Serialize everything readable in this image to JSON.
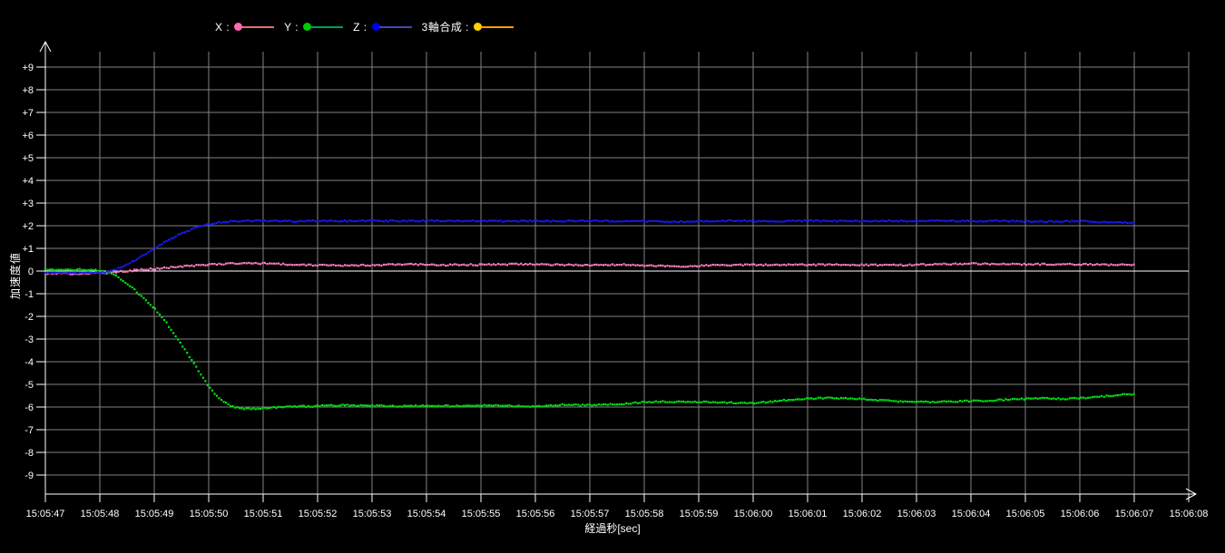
{
  "app": {
    "background": "#000000"
  },
  "legend": {
    "items": [
      {
        "id": "x",
        "label": "X :",
        "dot_color": "#ff69b4",
        "line_color": "#e86e6e"
      },
      {
        "id": "y",
        "label": "Y :",
        "dot_color": "#00cc00",
        "line_color": "#00a050"
      },
      {
        "id": "z",
        "label": "Z :",
        "dot_color": "#0000ee",
        "line_color": "#4646b4"
      },
      {
        "id": "composite",
        "label": "3軸合成 :",
        "dot_color": "#ffd200",
        "line_color": "#ffa000"
      }
    ]
  },
  "chart_data": {
    "type": "scatter",
    "title": "",
    "xlabel": "経過秒[sec]",
    "ylabel": "加速度値",
    "grid": true,
    "legend_position": "top",
    "background_color": "#000000",
    "grid_color": "#828282",
    "axis_color": "#ffffff",
    "zero_line_color": "#ffffff",
    "ylim": [
      -9,
      9
    ],
    "x_start": "15:05:47",
    "x_end": "15:06:08",
    "x_tick_labels": [
      "15:05:47",
      "15:05:48",
      "15:05:49",
      "15:05:50",
      "15:05:51",
      "15:05:52",
      "15:05:53",
      "15:05:54",
      "15:05:55",
      "15:05:56",
      "15:05:57",
      "15:05:58",
      "15:05:59",
      "15:06:00",
      "15:06:01",
      "15:06:02",
      "15:06:03",
      "15:06:04",
      "15:06:05",
      "15:06:06",
      "15:06:07",
      "15:06:08"
    ],
    "y_tick_labels": [
      "+9",
      "+8",
      "+7",
      "+6",
      "+5",
      "+4",
      "+3",
      "+2",
      "+1",
      "0",
      "-1",
      "-2",
      "-3",
      "-4",
      "-5",
      "-6",
      "-7",
      "-8",
      "-9"
    ],
    "series": [
      {
        "name": "X",
        "color": "#ff7fc0",
        "visible": true,
        "points": [
          [
            0,
            -0.12
          ],
          [
            0.3,
            -0.1
          ],
          [
            0.6,
            -0.12
          ],
          [
            0.9,
            -0.08
          ],
          [
            1.1,
            -0.1
          ],
          [
            1.4,
            -0.02
          ],
          [
            1.7,
            0.05
          ],
          [
            2.0,
            0.1
          ],
          [
            2.3,
            0.16
          ],
          [
            2.6,
            0.22
          ],
          [
            3.0,
            0.28
          ],
          [
            3.4,
            0.33
          ],
          [
            3.8,
            0.35
          ],
          [
            4.2,
            0.32
          ],
          [
            4.6,
            0.28
          ],
          [
            5.0,
            0.26
          ],
          [
            5.5,
            0.25
          ],
          [
            6.0,
            0.26
          ],
          [
            6.7,
            0.3
          ],
          [
            7.3,
            0.27
          ],
          [
            8.0,
            0.28
          ],
          [
            8.7,
            0.3
          ],
          [
            9.3,
            0.28
          ],
          [
            10.0,
            0.27
          ],
          [
            10.7,
            0.28
          ],
          [
            11.3,
            0.22
          ],
          [
            11.8,
            0.2
          ],
          [
            12.2,
            0.26
          ],
          [
            12.8,
            0.27
          ],
          [
            13.5,
            0.27
          ],
          [
            14.2,
            0.28
          ],
          [
            15.0,
            0.27
          ],
          [
            15.7,
            0.26
          ],
          [
            16.3,
            0.3
          ],
          [
            17.0,
            0.32
          ],
          [
            17.7,
            0.3
          ],
          [
            18.4,
            0.3
          ],
          [
            19.0,
            0.3
          ],
          [
            19.6,
            0.28
          ],
          [
            20.0,
            0.26
          ]
        ]
      },
      {
        "name": "Y",
        "color": "#00e414",
        "visible": true,
        "points": [
          [
            0,
            0.06
          ],
          [
            0.3,
            0.05
          ],
          [
            0.6,
            0.07
          ],
          [
            0.9,
            0.05
          ],
          [
            1.05,
            0.0
          ],
          [
            1.2,
            -0.1
          ],
          [
            1.35,
            -0.28
          ],
          [
            1.5,
            -0.55
          ],
          [
            1.65,
            -0.85
          ],
          [
            1.8,
            -1.2
          ],
          [
            2.0,
            -1.64
          ],
          [
            2.2,
            -2.2
          ],
          [
            2.4,
            -2.9
          ],
          [
            2.6,
            -3.6
          ],
          [
            2.8,
            -4.35
          ],
          [
            3.0,
            -5.1
          ],
          [
            3.2,
            -5.65
          ],
          [
            3.4,
            -5.95
          ],
          [
            3.6,
            -6.07
          ],
          [
            3.9,
            -6.08
          ],
          [
            4.2,
            -6.02
          ],
          [
            4.6,
            -5.98
          ],
          [
            5.0,
            -5.95
          ],
          [
            5.5,
            -5.92
          ],
          [
            6.0,
            -5.95
          ],
          [
            6.5,
            -5.96
          ],
          [
            7.0,
            -5.95
          ],
          [
            7.5,
            -5.95
          ],
          [
            8.0,
            -5.92
          ],
          [
            8.5,
            -5.95
          ],
          [
            9.0,
            -5.97
          ],
          [
            9.5,
            -5.9
          ],
          [
            10.0,
            -5.92
          ],
          [
            10.5,
            -5.88
          ],
          [
            11.0,
            -5.78
          ],
          [
            11.5,
            -5.76
          ],
          [
            12.0,
            -5.78
          ],
          [
            12.5,
            -5.8
          ],
          [
            13.0,
            -5.84
          ],
          [
            13.3,
            -5.76
          ],
          [
            13.8,
            -5.66
          ],
          [
            14.3,
            -5.6
          ],
          [
            14.8,
            -5.62
          ],
          [
            15.3,
            -5.7
          ],
          [
            15.8,
            -5.76
          ],
          [
            16.3,
            -5.78
          ],
          [
            16.8,
            -5.74
          ],
          [
            17.3,
            -5.72
          ],
          [
            17.8,
            -5.66
          ],
          [
            18.3,
            -5.6
          ],
          [
            18.7,
            -5.64
          ],
          [
            19.1,
            -5.6
          ],
          [
            19.5,
            -5.52
          ],
          [
            20.0,
            -5.42
          ]
        ]
      },
      {
        "name": "Z",
        "color": "#1a1aff",
        "visible": true,
        "points": [
          [
            0,
            -0.1
          ],
          [
            0.3,
            -0.08
          ],
          [
            0.6,
            -0.1
          ],
          [
            0.9,
            -0.08
          ],
          [
            1.1,
            -0.04
          ],
          [
            1.3,
            0.08
          ],
          [
            1.5,
            0.3
          ],
          [
            1.7,
            0.55
          ],
          [
            1.9,
            0.85
          ],
          [
            2.1,
            1.15
          ],
          [
            2.3,
            1.42
          ],
          [
            2.5,
            1.65
          ],
          [
            2.7,
            1.85
          ],
          [
            2.9,
            2.02
          ],
          [
            3.1,
            2.12
          ],
          [
            3.4,
            2.19
          ],
          [
            3.8,
            2.22
          ],
          [
            4.2,
            2.21
          ],
          [
            4.6,
            2.2
          ],
          [
            5.0,
            2.22
          ],
          [
            5.5,
            2.2
          ],
          [
            6.0,
            2.22
          ],
          [
            6.5,
            2.2
          ],
          [
            7.0,
            2.22
          ],
          [
            7.5,
            2.2
          ],
          [
            8.0,
            2.22
          ],
          [
            8.5,
            2.2
          ],
          [
            9.0,
            2.21
          ],
          [
            9.5,
            2.2
          ],
          [
            10.0,
            2.22
          ],
          [
            10.5,
            2.2
          ],
          [
            11.0,
            2.2
          ],
          [
            11.5,
            2.18
          ],
          [
            12.0,
            2.2
          ],
          [
            12.5,
            2.22
          ],
          [
            13.0,
            2.2
          ],
          [
            13.5,
            2.2
          ],
          [
            14.0,
            2.22
          ],
          [
            14.5,
            2.2
          ],
          [
            15.0,
            2.2
          ],
          [
            15.5,
            2.22
          ],
          [
            16.0,
            2.2
          ],
          [
            16.5,
            2.22
          ],
          [
            17.0,
            2.2
          ],
          [
            17.5,
            2.22
          ],
          [
            18.0,
            2.2
          ],
          [
            18.5,
            2.18
          ],
          [
            19.0,
            2.2
          ],
          [
            19.5,
            2.15
          ],
          [
            20.0,
            2.13
          ]
        ]
      },
      {
        "name": "3軸合成",
        "color": "#ffa000",
        "visible": false,
        "points": []
      }
    ]
  }
}
